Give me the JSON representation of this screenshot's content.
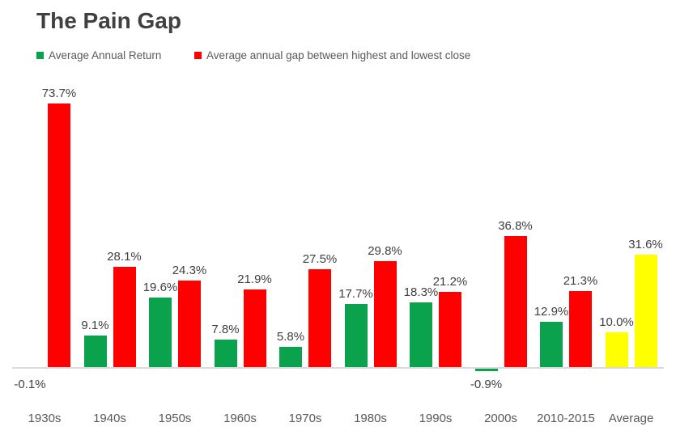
{
  "chart_data": {
    "type": "bar",
    "title": "The Pain Gap",
    "categories": [
      "1930s",
      "1940s",
      "1950s",
      "1960s",
      "1970s",
      "1980s",
      "1990s",
      "2000s",
      "2010-2015",
      "Average"
    ],
    "series": [
      {
        "name": "Average Annual Return",
        "color": "#0AA24C",
        "values": [
          -0.1,
          9.1,
          19.6,
          7.8,
          5.8,
          17.7,
          18.3,
          -0.9,
          12.9,
          10.0
        ],
        "labels": [
          "-0.1%",
          "9.1%",
          "19.6%",
          "7.8%",
          "5.8%",
          "17.7%",
          "18.3%",
          "-0.9%",
          "12.9%",
          "10.0%"
        ]
      },
      {
        "name": "Average annual gap between highest and lowest close",
        "color": "#FF0000",
        "values": [
          73.7,
          28.1,
          24.3,
          21.9,
          27.5,
          29.8,
          21.2,
          36.8,
          21.3,
          31.6
        ],
        "labels": [
          "73.7%",
          "28.1%",
          "24.3%",
          "21.9%",
          "27.5%",
          "29.8%",
          "21.2%",
          "36.8%",
          "21.3%",
          "31.6%"
        ]
      }
    ],
    "highlight_category": "Average",
    "highlight_color": "#FFFF00",
    "value_label_color": "#404040",
    "tick_label_color": "#595959",
    "legend_text_color": "#595959",
    "axis_line_color": "#D9D9D9",
    "background_color": "#FFFFFF",
    "grid": false,
    "legend_position": "top-left",
    "ylim": [
      -5,
      80
    ]
  }
}
